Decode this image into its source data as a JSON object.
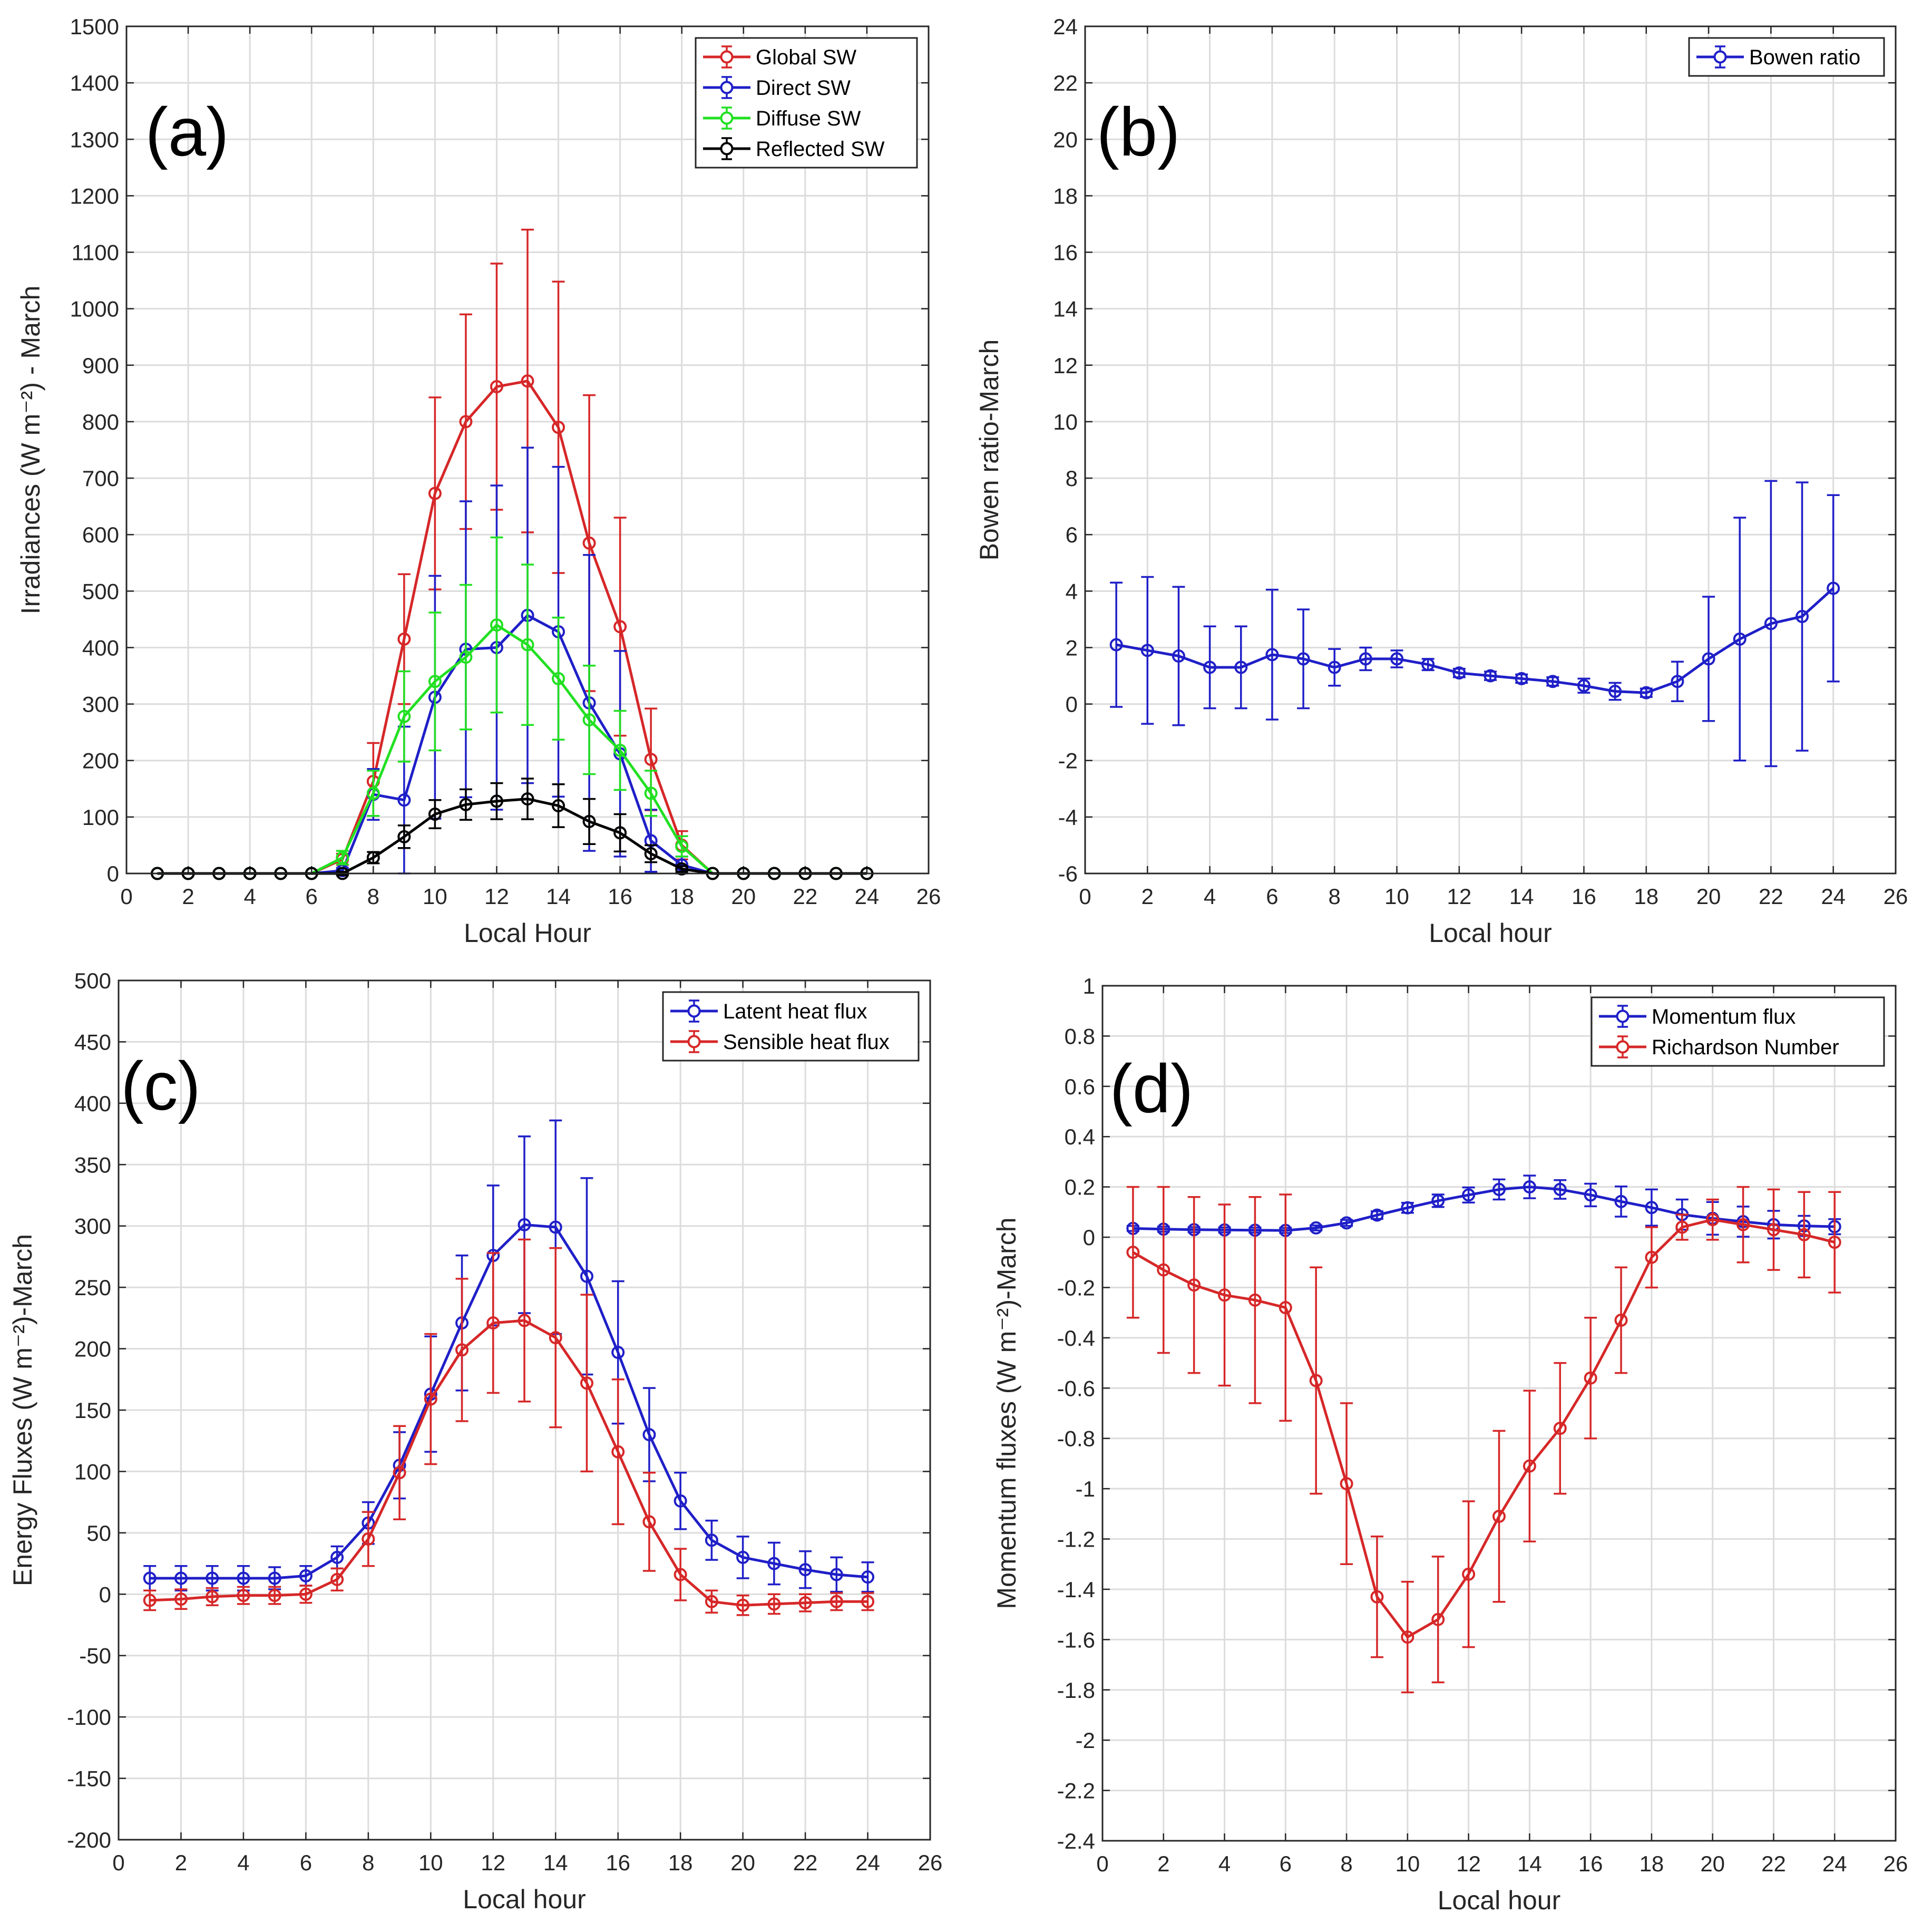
{
  "chart_data": [
    {
      "type": "line",
      "panel": "(a)",
      "xlabel": "Local Hour",
      "ylabel": "Irradiances (W m⁻²) - March",
      "xlim": [
        0,
        26
      ],
      "ylim": [
        0,
        1500
      ],
      "xticks": [
        0,
        2,
        4,
        6,
        8,
        10,
        12,
        14,
        16,
        18,
        20,
        22,
        24,
        26
      ],
      "yticks": [
        0,
        100,
        200,
        300,
        400,
        500,
        600,
        700,
        800,
        900,
        1000,
        1100,
        1200,
        1300,
        1400,
        1500
      ],
      "grid": true,
      "legend_position": "top-right",
      "x": [
        1,
        2,
        3,
        4,
        5,
        6,
        7,
        8,
        9,
        10,
        11,
        12,
        13,
        14,
        15,
        16,
        17,
        18,
        19,
        20,
        21,
        22,
        23,
        24
      ],
      "series": [
        {
          "name": "Global SW",
          "color": "#d62728",
          "values": [
            0,
            0,
            0,
            0,
            0,
            0,
            25,
            163,
            415,
            673,
            800,
            862,
            872,
            790,
            585,
            437,
            202,
            50,
            0,
            0,
            0,
            0,
            0,
            0
          ],
          "errors": [
            0,
            0,
            0,
            0,
            0,
            0,
            10,
            68,
            115,
            170,
            190,
            218,
            268,
            258,
            262,
            193,
            90,
            25,
            0,
            0,
            0,
            0,
            0,
            0
          ]
        },
        {
          "name": "Direct SW",
          "color": "#1f1fc8",
          "values": [
            0,
            0,
            0,
            0,
            0,
            0,
            5,
            140,
            130,
            312,
            397,
            400,
            457,
            428,
            302,
            212,
            58,
            15,
            0,
            0,
            0,
            0,
            0,
            0
          ],
          "errors": [
            0,
            0,
            0,
            0,
            0,
            0,
            5,
            45,
            130,
            215,
            262,
            287,
            297,
            292,
            262,
            182,
            55,
            15,
            0,
            0,
            0,
            0,
            0,
            0
          ]
        },
        {
          "name": "Diffuse SW",
          "color": "#22e022",
          "values": [
            0,
            0,
            0,
            0,
            0,
            0,
            28,
            142,
            278,
            340,
            383,
            440,
            405,
            345,
            272,
            218,
            142,
            48,
            0,
            0,
            0,
            0,
            0,
            0
          ],
          "errors": [
            0,
            0,
            0,
            0,
            0,
            0,
            12,
            40,
            80,
            122,
            128,
            155,
            142,
            108,
            96,
            70,
            40,
            18,
            0,
            0,
            0,
            0,
            0,
            0
          ]
        },
        {
          "name": "Reflected SW",
          "color": "#000000",
          "values": [
            0,
            0,
            0,
            0,
            0,
            0,
            0,
            28,
            65,
            105,
            122,
            128,
            132,
            120,
            92,
            72,
            35,
            8,
            0,
            0,
            0,
            0,
            0,
            0
          ],
          "errors": [
            0,
            0,
            0,
            0,
            0,
            0,
            3,
            10,
            20,
            25,
            27,
            32,
            36,
            38,
            40,
            33,
            15,
            5,
            0,
            0,
            0,
            0,
            0,
            0
          ]
        }
      ]
    },
    {
      "type": "line",
      "panel": "(b)",
      "xlabel": "Local hour",
      "ylabel": "Bowen ratio-March",
      "xlim": [
        0,
        26
      ],
      "ylim": [
        -6,
        24
      ],
      "xticks": [
        0,
        2,
        4,
        6,
        8,
        10,
        12,
        14,
        16,
        18,
        20,
        22,
        24,
        26
      ],
      "yticks": [
        -6,
        -4,
        -2,
        0,
        2,
        4,
        6,
        8,
        10,
        12,
        14,
        16,
        18,
        20,
        22,
        24
      ],
      "grid": true,
      "legend_position": "top-right",
      "x": [
        1,
        2,
        3,
        4,
        5,
        6,
        7,
        8,
        9,
        10,
        11,
        12,
        13,
        14,
        15,
        16,
        17,
        18,
        19,
        20,
        21,
        22,
        23,
        24
      ],
      "series": [
        {
          "name": "Bowen ratio",
          "color": "#1f1fc8",
          "values": [
            2.1,
            1.9,
            1.7,
            1.3,
            1.3,
            1.75,
            1.6,
            1.3,
            1.6,
            1.6,
            1.4,
            1.1,
            1.0,
            0.9,
            0.8,
            0.65,
            0.45,
            0.4,
            0.8,
            1.6,
            2.3,
            2.85,
            3.1,
            4.1
          ],
          "errors": [
            2.2,
            2.6,
            2.45,
            1.45,
            1.45,
            2.3,
            1.75,
            0.65,
            0.4,
            0.3,
            0.2,
            0.15,
            0.15,
            0.15,
            0.15,
            0.25,
            0.3,
            0.15,
            0.7,
            2.2,
            4.3,
            5.05,
            4.75,
            3.3
          ]
        }
      ]
    },
    {
      "type": "line",
      "panel": "(c)",
      "xlabel": "Local hour",
      "ylabel": "Energy Fluxes (W m⁻²)-March",
      "xlim": [
        0,
        26
      ],
      "ylim": [
        -200,
        500
      ],
      "xticks": [
        0,
        2,
        4,
        6,
        8,
        10,
        12,
        14,
        16,
        18,
        20,
        22,
        24,
        26
      ],
      "yticks": [
        -200,
        -150,
        -100,
        -50,
        0,
        50,
        100,
        150,
        200,
        250,
        300,
        350,
        400,
        450,
        500
      ],
      "grid": true,
      "legend_position": "top-right",
      "x": [
        1,
        2,
        3,
        4,
        5,
        6,
        7,
        8,
        9,
        10,
        11,
        12,
        13,
        14,
        15,
        16,
        17,
        18,
        19,
        20,
        21,
        22,
        23,
        24
      ],
      "series": [
        {
          "name": "Latent heat flux",
          "color": "#1f1fc8",
          "values": [
            13,
            13,
            13,
            13,
            13,
            15,
            30,
            58,
            105,
            163,
            221,
            276,
            301,
            299,
            259,
            197,
            130,
            76,
            44,
            30,
            25,
            20,
            16,
            14
          ],
          "errors": [
            10,
            10,
            10,
            10,
            9,
            8,
            9,
            17,
            27,
            47,
            55,
            57,
            72,
            87,
            80,
            58,
            38,
            23,
            16,
            17,
            17,
            15,
            14,
            12
          ]
        },
        {
          "name": "Sensible heat flux",
          "color": "#d62728",
          "values": [
            -5,
            -4,
            -2,
            -1,
            -1,
            0,
            12,
            45,
            99,
            159,
            199,
            221,
            223,
            209,
            172,
            116,
            59,
            16,
            -6,
            -9,
            -8,
            -7,
            -6,
            -6
          ],
          "errors": [
            8,
            8,
            7,
            7,
            7,
            7,
            9,
            22,
            38,
            53,
            58,
            57,
            66,
            73,
            72,
            59,
            40,
            21,
            9,
            8,
            8,
            7,
            7,
            7
          ]
        }
      ]
    },
    {
      "type": "line",
      "panel": "(d)",
      "xlabel": "Local hour",
      "ylabel": "Momentum fluxes (W m⁻²)-March",
      "xlim": [
        0,
        26
      ],
      "ylim": [
        -2.4,
        1
      ],
      "xticks": [
        0,
        2,
        4,
        6,
        8,
        10,
        12,
        14,
        16,
        18,
        20,
        22,
        24,
        26
      ],
      "yticks": [
        -2.4,
        -2.2,
        -2,
        -1.8,
        -1.6,
        -1.4,
        -1.2,
        -1,
        -0.8,
        -0.6,
        -0.4,
        -0.2,
        0,
        0.2,
        0.4,
        0.6,
        0.8,
        1
      ],
      "grid": true,
      "legend_position": "top-right",
      "x": [
        1,
        2,
        3,
        4,
        5,
        6,
        7,
        8,
        9,
        10,
        11,
        12,
        13,
        14,
        15,
        16,
        17,
        18,
        19,
        20,
        21,
        22,
        23,
        24
      ],
      "series": [
        {
          "name": "Momentum flux",
          "color": "#1f1fc8",
          "values": [
            0.035,
            0.032,
            0.03,
            0.029,
            0.028,
            0.027,
            0.037,
            0.057,
            0.088,
            0.117,
            0.145,
            0.168,
            0.19,
            0.2,
            0.19,
            0.168,
            0.142,
            0.118,
            0.09,
            0.075,
            0.062,
            0.05,
            0.045,
            0.042
          ],
          "errors": [
            0.01,
            0.01,
            0.01,
            0.01,
            0.01,
            0.01,
            0.01,
            0.012,
            0.015,
            0.02,
            0.025,
            0.03,
            0.04,
            0.045,
            0.037,
            0.045,
            0.06,
            0.072,
            0.06,
            0.065,
            0.06,
            0.055,
            0.04,
            0.03
          ]
        },
        {
          "name": "Richardson Number",
          "color": "#d62728",
          "values": [
            -0.06,
            -0.13,
            -0.19,
            -0.23,
            -0.25,
            -0.28,
            -0.57,
            -0.98,
            -1.43,
            -1.59,
            -1.52,
            -1.34,
            -1.11,
            -0.91,
            -0.76,
            -0.56,
            -0.33,
            -0.08,
            0.04,
            0.07,
            0.05,
            0.03,
            0.01,
            -0.02
          ],
          "errors": [
            0.26,
            0.33,
            0.35,
            0.36,
            0.41,
            0.45,
            0.45,
            0.32,
            0.24,
            0.22,
            0.25,
            0.29,
            0.34,
            0.3,
            0.26,
            0.24,
            0.21,
            0.12,
            0.05,
            0.08,
            0.15,
            0.16,
            0.17,
            0.2
          ]
        }
      ]
    }
  ]
}
